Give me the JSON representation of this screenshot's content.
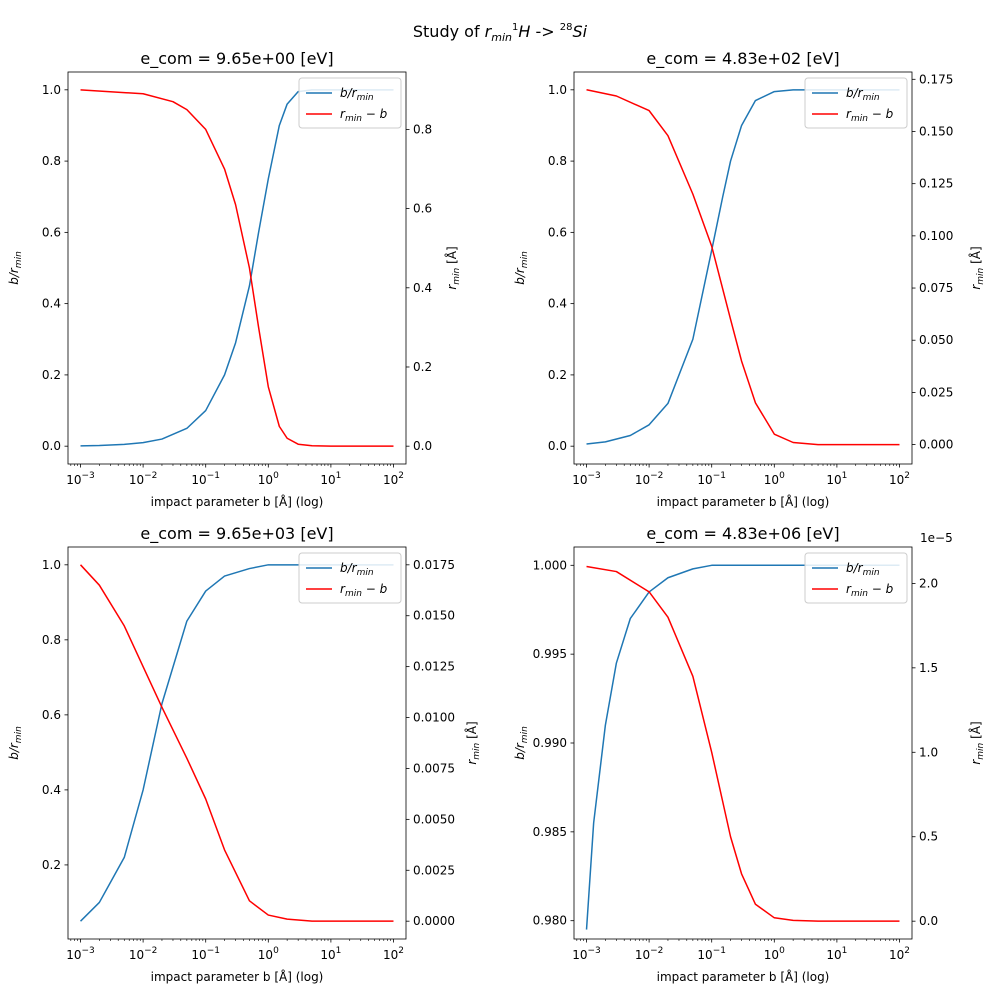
{
  "figure": {
    "suptitle_prefix": "Study of ",
    "suptitle_var": "r",
    "suptitle_sub": "min",
    "suptitle_iso1": "1",
    "suptitle_el1": "H",
    "suptitle_arrow": " -> ",
    "suptitle_iso2": "28",
    "suptitle_el2": "Si"
  },
  "labels": {
    "xlabel": "impact parameter b [Å] (log)",
    "ylabel_left_var": "b/r",
    "ylabel_left_sub": "min",
    "ylabel_right_var": "r",
    "ylabel_right_sub": "min",
    "ylabel_right_unit": " [Å]",
    "legend_blue_var": "b/r",
    "legend_blue_sub": "min",
    "legend_red_var": "r",
    "legend_red_sub": "min",
    "legend_red_suffix": " − b"
  },
  "colors": {
    "blue": "#1f77b4",
    "red": "#ff0000"
  },
  "chart_data": [
    {
      "type": "line",
      "title": "e_com = 9.65e+00 [eV]",
      "xscale": "log",
      "xlim_exp": [
        -3.2,
        2.2
      ],
      "x_ticks": [
        -3,
        -2,
        -1,
        0,
        1,
        2
      ],
      "left": {
        "ylim": [
          -0.05,
          1.05
        ],
        "ticks": [
          "0.0",
          "0.2",
          "0.4",
          "0.6",
          "0.8",
          "1.0"
        ],
        "tick_values": [
          0,
          0.2,
          0.4,
          0.6,
          0.8,
          1.0
        ]
      },
      "right": {
        "ylim": [
          -0.045,
          0.945
        ],
        "ticks": [
          "0.0",
          "0.2",
          "0.4",
          "0.6",
          "0.8"
        ],
        "tick_values": [
          0,
          0.2,
          0.4,
          0.6,
          0.8
        ],
        "offset_label": ""
      },
      "legend": "upper right",
      "series": [
        {
          "name_ref": "blue",
          "axis": "left",
          "color": "#1f77b4",
          "x": [
            0.001,
            0.002,
            0.005,
            0.01,
            0.02,
            0.05,
            0.1,
            0.2,
            0.3,
            0.5,
            0.7,
            1,
            1.5,
            2,
            3,
            5,
            10,
            100
          ],
          "y": [
            0.001,
            0.002,
            0.005,
            0.01,
            0.02,
            0.05,
            0.1,
            0.2,
            0.29,
            0.45,
            0.6,
            0.75,
            0.9,
            0.96,
            0.995,
            1.0,
            1.0,
            1.0
          ]
        },
        {
          "name_ref": "red",
          "axis": "right",
          "color": "#ff0000",
          "x": [
            0.001,
            0.01,
            0.03,
            0.05,
            0.1,
            0.2,
            0.3,
            0.5,
            0.7,
            1,
            1.5,
            2,
            3,
            5,
            10,
            100
          ],
          "y": [
            0.9,
            0.89,
            0.87,
            0.85,
            0.8,
            0.7,
            0.61,
            0.45,
            0.3,
            0.15,
            0.05,
            0.02,
            0.005,
            0.001,
            0.0,
            0.0
          ]
        }
      ]
    },
    {
      "type": "line",
      "title": "e_com = 4.83e+02 [eV]",
      "xscale": "log",
      "xlim_exp": [
        -3.2,
        2.2
      ],
      "x_ticks": [
        -3,
        -2,
        -1,
        0,
        1,
        2
      ],
      "left": {
        "ylim": [
          -0.05,
          1.05
        ],
        "ticks": [
          "0.0",
          "0.2",
          "0.4",
          "0.6",
          "0.8",
          "1.0"
        ],
        "tick_values": [
          0,
          0.2,
          0.4,
          0.6,
          0.8,
          1.0
        ]
      },
      "right": {
        "ylim": [
          -0.0093,
          0.1785
        ],
        "ticks": [
          "0.000",
          "0.025",
          "0.050",
          "0.075",
          "0.100",
          "0.125",
          "0.150",
          "0.175"
        ],
        "tick_values": [
          0,
          0.025,
          0.05,
          0.075,
          0.1,
          0.125,
          0.15,
          0.175
        ],
        "offset_label": ""
      },
      "legend": "upper right",
      "series": [
        {
          "name_ref": "blue",
          "axis": "left",
          "color": "#1f77b4",
          "x": [
            0.001,
            0.002,
            0.005,
            0.01,
            0.02,
            0.05,
            0.1,
            0.15,
            0.2,
            0.3,
            0.5,
            1,
            2,
            5,
            100
          ],
          "y": [
            0.006,
            0.012,
            0.03,
            0.06,
            0.12,
            0.3,
            0.55,
            0.7,
            0.8,
            0.9,
            0.97,
            0.995,
            1.0,
            1.0,
            1.0
          ]
        },
        {
          "name_ref": "red",
          "axis": "right",
          "color": "#ff0000",
          "x": [
            0.001,
            0.003,
            0.01,
            0.02,
            0.05,
            0.1,
            0.2,
            0.3,
            0.5,
            1,
            2,
            5,
            100
          ],
          "y": [
            0.17,
            0.167,
            0.16,
            0.148,
            0.12,
            0.095,
            0.06,
            0.04,
            0.02,
            0.005,
            0.001,
            0.0,
            0.0
          ]
        }
      ]
    },
    {
      "type": "line",
      "title": "e_com = 9.65e+03 [eV]",
      "xscale": "log",
      "xlim_exp": [
        -3.2,
        2.2
      ],
      "x_ticks": [
        -3,
        -2,
        -1,
        0,
        1,
        2
      ],
      "left": {
        "ylim": [
          0.0025,
          1.0475
        ],
        "ticks": [
          "0.2",
          "0.4",
          "0.6",
          "0.8",
          "1.0"
        ],
        "tick_values": [
          0.2,
          0.4,
          0.6,
          0.8,
          1.0
        ]
      },
      "right": {
        "ylim": [
          -0.000875,
          0.018375
        ],
        "ticks": [
          "0.0000",
          "0.0025",
          "0.0050",
          "0.0075",
          "0.0100",
          "0.0125",
          "0.0150",
          "0.0175"
        ],
        "tick_values": [
          0,
          0.0025,
          0.005,
          0.0075,
          0.01,
          0.0125,
          0.015,
          0.0175
        ],
        "offset_label": ""
      },
      "legend": "upper right",
      "series": [
        {
          "name_ref": "blue",
          "axis": "left",
          "color": "#1f77b4",
          "x": [
            0.001,
            0.002,
            0.005,
            0.01,
            0.02,
            0.05,
            0.1,
            0.2,
            0.5,
            1,
            2,
            5,
            100
          ],
          "y": [
            0.05,
            0.1,
            0.22,
            0.4,
            0.63,
            0.85,
            0.93,
            0.97,
            0.99,
            1.0,
            1.0,
            1.0,
            1.0
          ]
        },
        {
          "name_ref": "red",
          "axis": "right",
          "color": "#ff0000",
          "x": [
            0.001,
            0.002,
            0.005,
            0.01,
            0.02,
            0.05,
            0.1,
            0.2,
            0.5,
            1,
            2,
            5,
            100
          ],
          "y": [
            0.0175,
            0.0165,
            0.0145,
            0.0125,
            0.0105,
            0.008,
            0.006,
            0.0035,
            0.001,
            0.0003,
            0.0001,
            0.0,
            0.0
          ]
        }
      ]
    },
    {
      "type": "line",
      "title": "e_com = 4.83e+06 [eV]",
      "xscale": "log",
      "xlim_exp": [
        -3.2,
        2.2
      ],
      "x_ticks": [
        -3,
        -2,
        -1,
        0,
        1,
        2
      ],
      "left": {
        "ylim": [
          0.97897,
          1.00103
        ],
        "ticks": [
          "0.980",
          "0.985",
          "0.990",
          "0.995",
          "1.000"
        ],
        "tick_values": [
          0.98,
          0.985,
          0.99,
          0.995,
          1.0
        ]
      },
      "right": {
        "ylim": [
          -0.1055,
          2.2155
        ],
        "ticks": [
          "0.0",
          "0.5",
          "1.0",
          "1.5",
          "2.0"
        ],
        "tick_values": [
          0,
          0.5,
          1.0,
          1.5,
          2.0
        ],
        "offset_label": "1e−5"
      },
      "legend": "upper right",
      "series": [
        {
          "name_ref": "blue",
          "axis": "left",
          "color": "#1f77b4",
          "x": [
            0.001,
            0.0013,
            0.002,
            0.003,
            0.005,
            0.01,
            0.02,
            0.05,
            0.1,
            0.2,
            0.5,
            1,
            100
          ],
          "y": [
            0.9795,
            0.9855,
            0.991,
            0.9945,
            0.997,
            0.9985,
            0.9993,
            0.9998,
            1.0,
            1.0,
            1.0,
            1.0,
            1.0
          ]
        },
        {
          "name_ref": "red",
          "axis": "right",
          "color": "#ff0000",
          "x": [
            0.001,
            0.003,
            0.01,
            0.02,
            0.05,
            0.1,
            0.2,
            0.3,
            0.5,
            1,
            2,
            5,
            100
          ],
          "y": [
            2.1,
            2.07,
            1.95,
            1.8,
            1.45,
            1.0,
            0.5,
            0.28,
            0.1,
            0.02,
            0.005,
            0.0,
            0.0
          ]
        }
      ]
    }
  ]
}
